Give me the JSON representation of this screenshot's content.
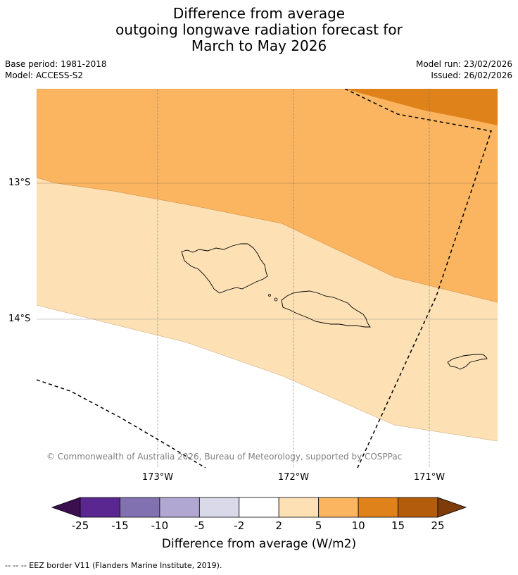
{
  "title": {
    "line1": "Difference from average",
    "line2": "outgoing longwave radiation forecast for",
    "line3": "March to May 2026"
  },
  "meta": {
    "base_period": "Base period: 1981-2018",
    "model": "Model: ACCESS-S2",
    "model_run": "Model run: 23/02/2026",
    "issued": "Issued: 26/02/2026"
  },
  "map": {
    "lat_labels": [
      "13°S",
      "14°S"
    ],
    "lon_labels": [
      "173°W",
      "172°W",
      "171°W"
    ],
    "copyright": "© Commonwealth of Australia 2026, Bureau of Meteorology, supported by COSPPac",
    "legend_note": "--  --  -- EEZ border V11 (Flanders Marine Institute, 2019)."
  },
  "colorbar": {
    "label": "Difference from average (W/m2)",
    "ticks": [
      "-25",
      "-15",
      "-10",
      "-5",
      "-2",
      "2",
      "5",
      "10",
      "15",
      "25"
    ],
    "colors": [
      "#3b0f4f",
      "#5a2790",
      "#8171b0",
      "#b0a8d2",
      "#d9d9ea",
      "#ffffff",
      "#fde0b4",
      "#fbb560",
      "#e0821a",
      "#b35c0b",
      "#7f3b08"
    ]
  }
}
